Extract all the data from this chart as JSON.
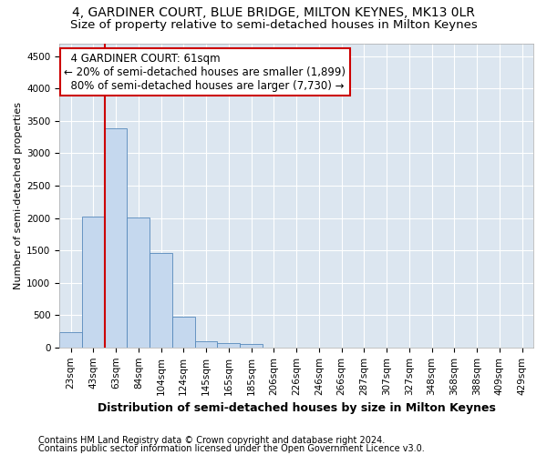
{
  "title": "4, GARDINER COURT, BLUE BRIDGE, MILTON KEYNES, MK13 0LR",
  "subtitle": "Size of property relative to semi-detached houses in Milton Keynes",
  "xlabel": "Distribution of semi-detached houses by size in Milton Keynes",
  "ylabel": "Number of semi-detached properties",
  "footnote1": "Contains HM Land Registry data © Crown copyright and database right 2024.",
  "footnote2": "Contains public sector information licensed under the Open Government Licence v3.0.",
  "categories": [
    "23sqm",
    "43sqm",
    "63sqm",
    "84sqm",
    "104sqm",
    "124sqm",
    "145sqm",
    "165sqm",
    "185sqm",
    "206sqm",
    "226sqm",
    "246sqm",
    "266sqm",
    "287sqm",
    "307sqm",
    "327sqm",
    "348sqm",
    "368sqm",
    "388sqm",
    "409sqm",
    "429sqm"
  ],
  "values": [
    230,
    2020,
    3380,
    2010,
    1460,
    470,
    100,
    65,
    60,
    0,
    0,
    0,
    0,
    0,
    0,
    0,
    0,
    0,
    0,
    0,
    0
  ],
  "bar_color": "#c5d8ee",
  "bar_edge_color": "#5588bb",
  "property_line_x": 1.5,
  "property_sqm": 61,
  "pct_smaller": 20,
  "count_smaller": 1899,
  "pct_larger": 80,
  "count_larger": 7730,
  "annotation_box_color": "#ffffff",
  "annotation_box_edge": "#cc0000",
  "vline_color": "#cc0000",
  "ylim": [
    0,
    4700
  ],
  "yticks": [
    0,
    500,
    1000,
    1500,
    2000,
    2500,
    3000,
    3500,
    4000,
    4500
  ],
  "background_color": "#dce6f0",
  "grid_color": "#ffffff",
  "title_fontsize": 10,
  "subtitle_fontsize": 9.5,
  "ylabel_fontsize": 8,
  "xlabel_fontsize": 9,
  "tick_fontsize": 7.5,
  "annotation_fontsize": 8.5,
  "footnote_fontsize": 7
}
